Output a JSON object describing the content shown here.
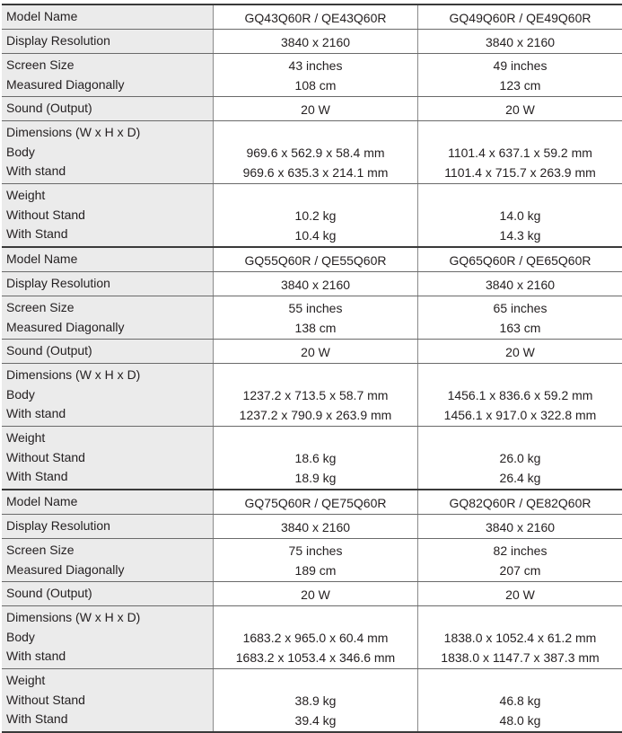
{
  "labels": {
    "model_name": "Model Name",
    "display_resolution": "Display Resolution",
    "screen_size": "Screen Size",
    "measured_diagonally": "Measured Diagonally",
    "sound_output": "Sound (Output)",
    "dimensions": "Dimensions (W x H x D)",
    "body": "Body",
    "with_stand_dim": "With stand",
    "weight": "Weight",
    "without_stand": "Without Stand",
    "with_stand": "With Stand"
  },
  "sections": [
    {
      "models": [
        {
          "model": "GQ43Q60R / QE43Q60R",
          "resolution": "3840 x 2160",
          "screen_size": "43 inches",
          "diagonal": "108 cm",
          "sound": "20 W",
          "body": "969.6 x 562.9 x 58.4 mm",
          "with_stand_dim": "969.6 x 635.3 x 214.1 mm",
          "weight_without": "10.2 kg",
          "weight_with": "10.4 kg"
        },
        {
          "model": "GQ49Q60R / QE49Q60R",
          "resolution": "3840 x 2160",
          "screen_size": "49 inches",
          "diagonal": "123 cm",
          "sound": "20 W",
          "body": "1101.4 x 637.1 x 59.2 mm",
          "with_stand_dim": "1101.4 x 715.7 x 263.9 mm",
          "weight_without": "14.0 kg",
          "weight_with": "14.3 kg"
        }
      ]
    },
    {
      "models": [
        {
          "model": "GQ55Q60R / QE55Q60R",
          "resolution": "3840 x 2160",
          "screen_size": "55 inches",
          "diagonal": "138 cm",
          "sound": "20 W",
          "body": "1237.2 x 713.5 x 58.7 mm",
          "with_stand_dim": "1237.2 x 790.9 x 263.9 mm",
          "weight_without": "18.6 kg",
          "weight_with": "18.9 kg"
        },
        {
          "model": "GQ65Q60R / QE65Q60R",
          "resolution": "3840 x 2160",
          "screen_size": "65 inches",
          "diagonal": "163 cm",
          "sound": "20 W",
          "body": "1456.1 x 836.6 x 59.2 mm",
          "with_stand_dim": "1456.1 x 917.0 x 322.8 mm",
          "weight_without": "26.0 kg",
          "weight_with": "26.4 kg"
        }
      ]
    },
    {
      "models": [
        {
          "model": "GQ75Q60R / QE75Q60R",
          "resolution": "3840 x 2160",
          "screen_size": "75 inches",
          "diagonal": "189 cm",
          "sound": "20 W",
          "body": "1683.2 x 965.0 x 60.4 mm",
          "with_stand_dim": "1683.2 x 1053.4 x 346.6 mm",
          "weight_without": "38.9 kg",
          "weight_with": "39.4 kg"
        },
        {
          "model": "GQ82Q60R / QE82Q60R",
          "resolution": "3840 x 2160",
          "screen_size": "82 inches",
          "diagonal": "207 cm",
          "sound": "20 W",
          "body": "1838.0 x 1052.4 x 61.2 mm",
          "with_stand_dim": "1838.0 x 1147.7 x 387.3 mm",
          "weight_without": "46.8 kg",
          "weight_with": "48.0 kg"
        }
      ]
    }
  ]
}
